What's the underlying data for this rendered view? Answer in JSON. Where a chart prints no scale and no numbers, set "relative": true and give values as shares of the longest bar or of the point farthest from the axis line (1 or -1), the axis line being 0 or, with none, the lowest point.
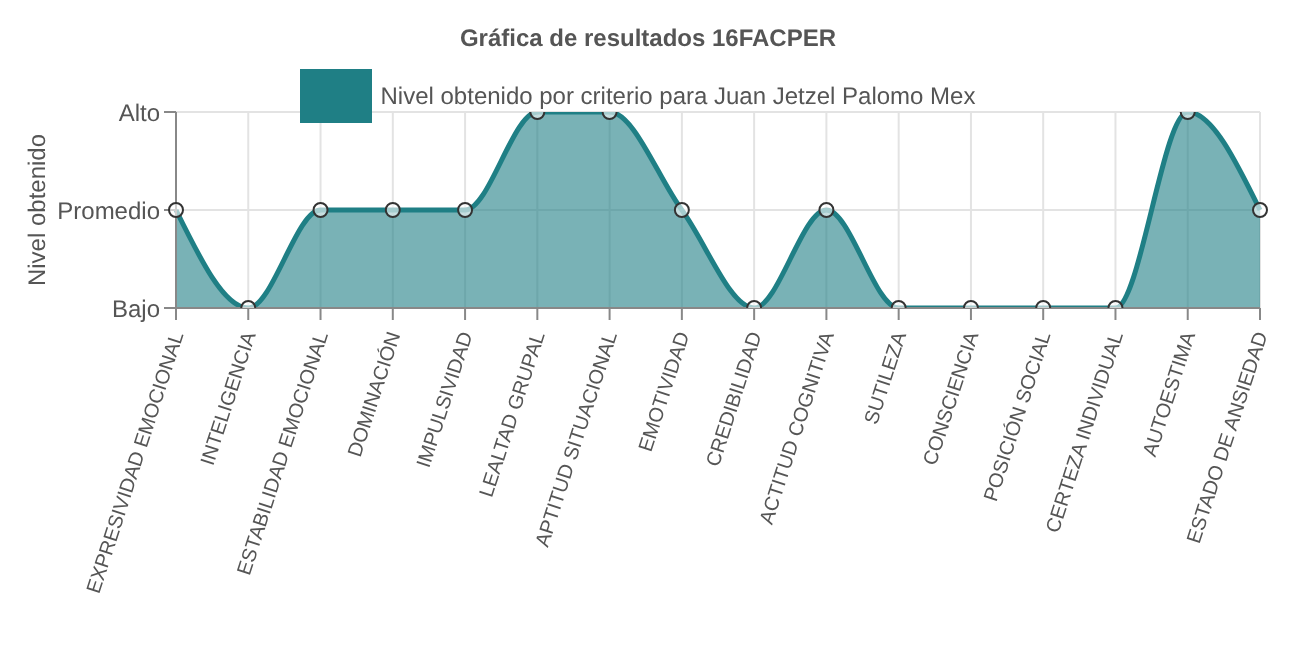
{
  "chart_data": {
    "type": "area",
    "title": "Gráfica de resultados 16FACPER",
    "ylabel": "Nivel obtenido",
    "categories": [
      "EXPRESIVIDAD EMOCIONAL",
      "INTELIGENCIA",
      "ESTABILIDAD EMOCIONAL",
      "DOMINACIÓN",
      "IMPULSIVIDAD",
      "LEALTAD GRUPAL",
      "APTITUD SITUACIONAL",
      "EMOTIVIDAD",
      "CREDIBILIDAD",
      "ACTITUD COGNITIVA",
      "SUTILEZA",
      "CONSCIENCIA",
      "POSICIÓN SOCIAL",
      "CERTEZA INDIVIDUAL",
      "AUTOESTIMA",
      "ESTADO DE ANSIEDAD"
    ],
    "series": [
      {
        "name": "Nivel obtenido por criterio para Juan Jetzel Palomo Mex",
        "color": "#1f7f85",
        "values": [
          0.5,
          0,
          0.5,
          0.5,
          0.5,
          1,
          1,
          0.5,
          0,
          0.5,
          0,
          0,
          0,
          0,
          1,
          0.5
        ]
      }
    ],
    "relative": true,
    "annotations": [
      "Bajo",
      "Promedio",
      "Alto"
    ],
    "grid": true,
    "legend": "top",
    "marker": "circle"
  }
}
